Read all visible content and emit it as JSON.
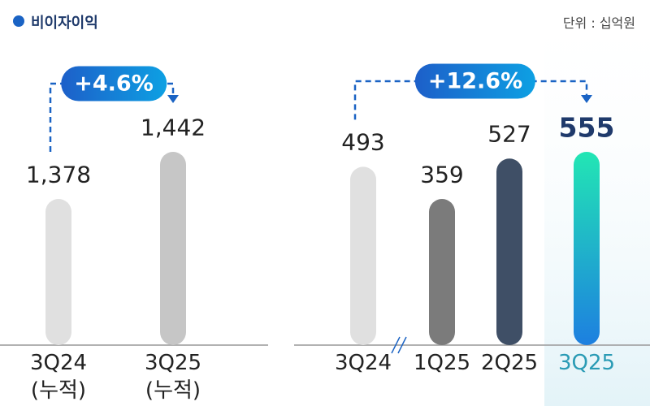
{
  "title": "비이자이익",
  "unit": "단위 : 십억원",
  "chart_data": [
    {
      "type": "bar",
      "categories": [
        "3Q24\n(누적)",
        "3Q25\n(누적)"
      ],
      "values": [
        1378,
        1442
      ],
      "value_labels": [
        "1,378",
        "1,442"
      ],
      "colors": [
        "#e0e0e0",
        "#c6c6c6"
      ],
      "annotation": "+4.6%"
    },
    {
      "type": "bar",
      "categories": [
        "3Q24",
        "1Q25",
        "2Q25",
        "3Q25"
      ],
      "values": [
        493,
        359,
        527,
        555
      ],
      "value_labels": [
        "493",
        "359",
        "527",
        "555"
      ],
      "colors": [
        "#e0e0e0",
        "#7b7b7b",
        "#3f4f66",
        [
          "#22e6b4",
          "#1d7fe0"
        ]
      ],
      "annotation": "+12.6%"
    }
  ]
}
